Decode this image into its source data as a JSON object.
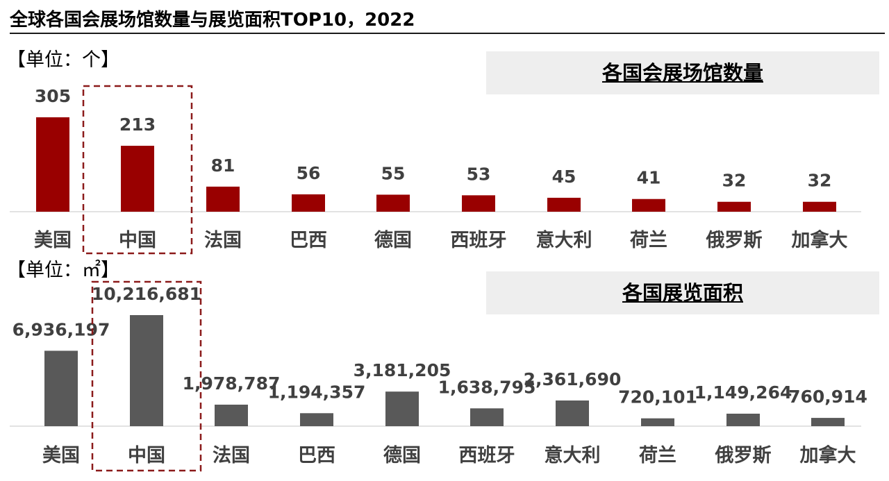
{
  "title": "全球各国会展场馆数量与展览面积TOP10，2022",
  "chart_data": [
    {
      "type": "bar",
      "title": "各国会展场馆数量",
      "unit_label": "【单位：个】",
      "categories": [
        "美国",
        "中国",
        "法国",
        "巴西",
        "德国",
        "西班牙",
        "意大利",
        "荷兰",
        "俄罗斯",
        "加拿大"
      ],
      "values": [
        305,
        213,
        81,
        56,
        55,
        53,
        45,
        41,
        32,
        32
      ],
      "value_labels": [
        "305",
        "213",
        "81",
        "56",
        "55",
        "53",
        "45",
        "41",
        "32",
        "32"
      ],
      "bar_color": "#990000",
      "highlight_category": "中国",
      "highlight_color": "#8b1a1a"
    },
    {
      "type": "bar",
      "title": "各国展览面积",
      "unit_label": "【单位：㎡】",
      "categories": [
        "美国",
        "中国",
        "法国",
        "巴西",
        "德国",
        "西班牙",
        "意大利",
        "荷兰",
        "俄罗斯",
        "加拿大"
      ],
      "values": [
        6936197,
        10216681,
        1978787,
        1194357,
        3181205,
        1638795,
        2361690,
        720101,
        1149264,
        760914
      ],
      "value_labels": [
        "6,936,197",
        "10,216,681",
        "1,978,787",
        "1,194,357",
        "3,181,205",
        "1,638,795",
        "2,361,690",
        "720,101",
        "1,149,264",
        "760,914"
      ],
      "bar_color": "#595959",
      "highlight_category": "中国",
      "highlight_color": "#8b1a1a"
    }
  ]
}
